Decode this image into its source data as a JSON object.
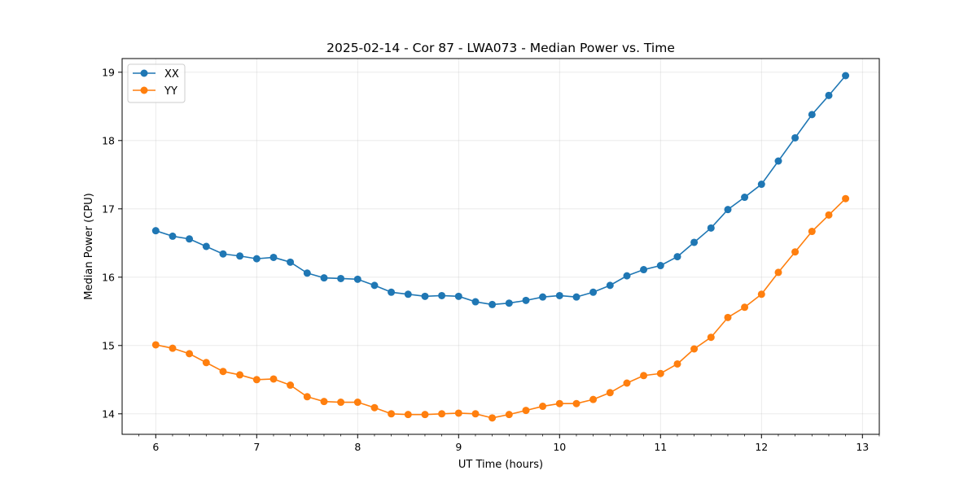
{
  "chart_data": {
    "type": "line",
    "title": "2025-02-14 - Cor 87 - LWA073 - Median Power vs. Time",
    "xlabel": "UT Time (hours)",
    "ylabel": "Median Power (CPU)",
    "xlim": [
      5.667,
      13.167
    ],
    "ylim": [
      13.7,
      19.2
    ],
    "xticks": [
      6,
      7,
      8,
      9,
      10,
      11,
      12,
      13
    ],
    "yticks": [
      14,
      15,
      16,
      17,
      18,
      19
    ],
    "grid": true,
    "legend_position": "top-left",
    "x": [
      6.0,
      6.167,
      6.333,
      6.5,
      6.667,
      6.833,
      7.0,
      7.167,
      7.333,
      7.5,
      7.667,
      7.833,
      8.0,
      8.167,
      8.333,
      8.5,
      8.667,
      8.833,
      9.0,
      9.167,
      9.333,
      9.5,
      9.667,
      9.833,
      10.0,
      10.167,
      10.333,
      10.5,
      10.667,
      10.833,
      11.0,
      11.167,
      11.333,
      11.5,
      11.667,
      11.833,
      12.0,
      12.167,
      12.333,
      12.5,
      12.667,
      12.833
    ],
    "series": [
      {
        "name": "XX",
        "color": "#1f77b4",
        "values": [
          16.68,
          16.6,
          16.56,
          16.45,
          16.34,
          16.31,
          16.27,
          16.29,
          16.22,
          16.06,
          15.99,
          15.98,
          15.97,
          15.88,
          15.78,
          15.75,
          15.72,
          15.73,
          15.72,
          15.64,
          15.6,
          15.62,
          15.66,
          15.71,
          15.73,
          15.71,
          15.78,
          15.88,
          16.02,
          16.11,
          16.17,
          16.3,
          16.51,
          16.72,
          16.99,
          17.17,
          17.36,
          17.7,
          18.04,
          18.38,
          18.66,
          18.95
        ]
      },
      {
        "name": "YY",
        "color": "#ff7f0e",
        "values": [
          15.01,
          14.96,
          14.88,
          14.75,
          14.62,
          14.57,
          14.5,
          14.51,
          14.42,
          14.25,
          14.18,
          14.17,
          14.17,
          14.09,
          14.0,
          13.99,
          13.99,
          14.0,
          14.01,
          14.0,
          13.94,
          13.99,
          14.05,
          14.11,
          14.15,
          14.15,
          14.21,
          14.31,
          14.45,
          14.56,
          14.59,
          14.73,
          14.95,
          15.12,
          15.41,
          15.56,
          15.75,
          16.07,
          16.37,
          16.67,
          16.91,
          17.15
        ]
      }
    ]
  }
}
